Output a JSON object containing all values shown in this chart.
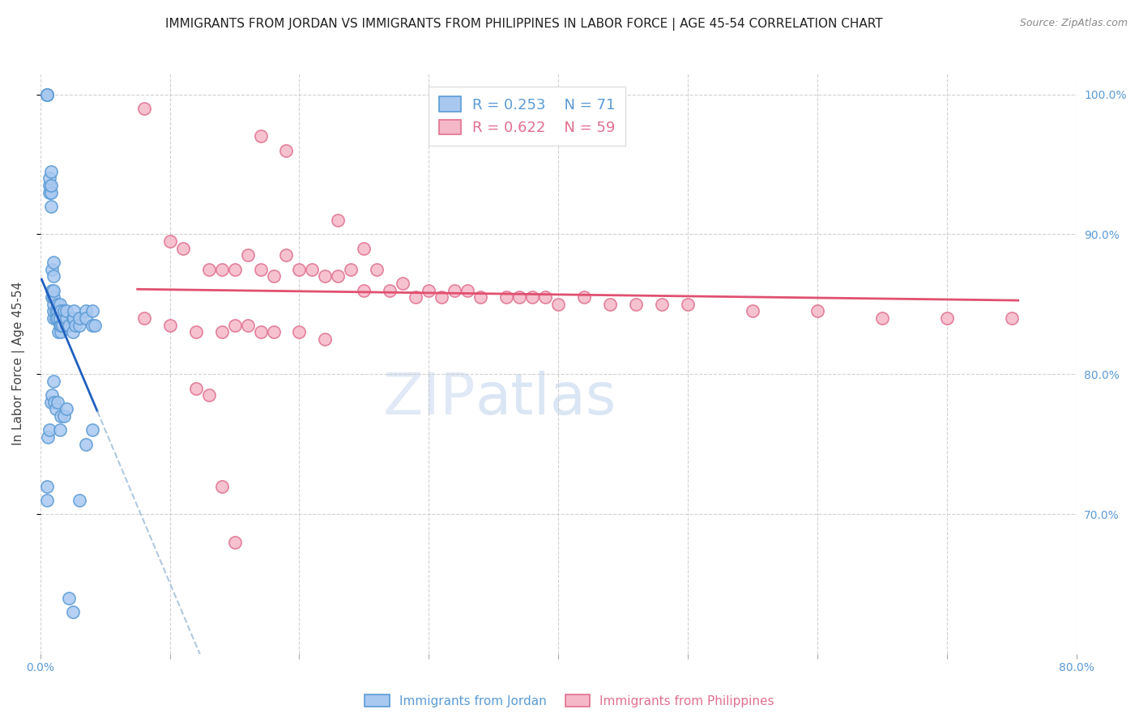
{
  "title": "IMMIGRANTS FROM JORDAN VS IMMIGRANTS FROM PHILIPPINES IN LABOR FORCE | AGE 45-54 CORRELATION CHART",
  "source": "Source: ZipAtlas.com",
  "ylabel": "In Labor Force | Age 45-54",
  "xmin": 0.0,
  "xmax": 0.8,
  "ymin": 0.6,
  "ymax": 1.015,
  "right_yticks": [
    0.7,
    0.8,
    0.9,
    1.0
  ],
  "right_ytick_labels": [
    "70.0%",
    "80.0%",
    "90.0%",
    "100.0%"
  ],
  "xticks": [
    0.0,
    0.1,
    0.2,
    0.3,
    0.4,
    0.5,
    0.6,
    0.7,
    0.8
  ],
  "xtick_labels": [
    "0.0%",
    "",
    "",
    "",
    "",
    "",
    "",
    "",
    "80.0%"
  ],
  "jordan_color": "#a8c8f0",
  "jordan_edge_color": "#5b9bd5",
  "philippines_color": "#f5b8c8",
  "philippines_edge_color": "#e07090",
  "jordan_line_color": "#2060c0",
  "philippines_line_color": "#e05070",
  "jordan_dashed_color": "#b0c8e0",
  "legend_label_jordan": "Immigrants from Jordan",
  "legend_label_philippines": "Immigrants from Philippines",
  "watermark_zip": "ZIP",
  "watermark_atlas": "atlas",
  "jordan_x": [
    0.005,
    0.005,
    0.005,
    0.007,
    0.007,
    0.007,
    0.008,
    0.008,
    0.008,
    0.008,
    0.009,
    0.009,
    0.009,
    0.01,
    0.01,
    0.01,
    0.01,
    0.01,
    0.01,
    0.01,
    0.012,
    0.012,
    0.013,
    0.013,
    0.013,
    0.014,
    0.015,
    0.015,
    0.015,
    0.015,
    0.016,
    0.016,
    0.016,
    0.017,
    0.018,
    0.018,
    0.02,
    0.02,
    0.02,
    0.022,
    0.025,
    0.025,
    0.026,
    0.026,
    0.027,
    0.03,
    0.03,
    0.035,
    0.035,
    0.04,
    0.04,
    0.042,
    0.005,
    0.005,
    0.006,
    0.007,
    0.008,
    0.009,
    0.01,
    0.011,
    0.012,
    0.013,
    0.015,
    0.016,
    0.018,
    0.02,
    0.022,
    0.025,
    0.03,
    0.035,
    0.04
  ],
  "jordan_y": [
    1.0,
    1.0,
    1.0,
    0.93,
    0.935,
    0.94,
    0.92,
    0.93,
    0.935,
    0.945,
    0.855,
    0.86,
    0.875,
    0.84,
    0.845,
    0.85,
    0.855,
    0.86,
    0.87,
    0.88,
    0.84,
    0.845,
    0.845,
    0.84,
    0.85,
    0.83,
    0.835,
    0.84,
    0.845,
    0.85,
    0.83,
    0.835,
    0.845,
    0.835,
    0.84,
    0.845,
    0.835,
    0.84,
    0.845,
    0.835,
    0.84,
    0.83,
    0.84,
    0.845,
    0.835,
    0.835,
    0.84,
    0.845,
    0.84,
    0.835,
    0.845,
    0.835,
    0.72,
    0.71,
    0.755,
    0.76,
    0.78,
    0.785,
    0.795,
    0.78,
    0.775,
    0.78,
    0.76,
    0.77,
    0.77,
    0.775,
    0.64,
    0.63,
    0.71,
    0.75,
    0.76
  ],
  "philippines_x": [
    0.08,
    0.35,
    0.17,
    0.19,
    0.23,
    0.25,
    0.1,
    0.11,
    0.13,
    0.14,
    0.15,
    0.16,
    0.17,
    0.18,
    0.19,
    0.2,
    0.21,
    0.22,
    0.23,
    0.24,
    0.25,
    0.26,
    0.27,
    0.28,
    0.29,
    0.3,
    0.31,
    0.32,
    0.33,
    0.34,
    0.36,
    0.37,
    0.38,
    0.39,
    0.4,
    0.42,
    0.44,
    0.46,
    0.48,
    0.5,
    0.55,
    0.6,
    0.65,
    0.7,
    0.75,
    0.08,
    0.1,
    0.12,
    0.14,
    0.15,
    0.16,
    0.17,
    0.18,
    0.2,
    0.22,
    0.12,
    0.13,
    0.14,
    0.15
  ],
  "philippines_y": [
    0.99,
    1.0,
    0.97,
    0.96,
    0.91,
    0.89,
    0.895,
    0.89,
    0.875,
    0.875,
    0.875,
    0.885,
    0.875,
    0.87,
    0.885,
    0.875,
    0.875,
    0.87,
    0.87,
    0.875,
    0.86,
    0.875,
    0.86,
    0.865,
    0.855,
    0.86,
    0.855,
    0.86,
    0.86,
    0.855,
    0.855,
    0.855,
    0.855,
    0.855,
    0.85,
    0.855,
    0.85,
    0.85,
    0.85,
    0.85,
    0.845,
    0.845,
    0.84,
    0.84,
    0.84,
    0.84,
    0.835,
    0.83,
    0.83,
    0.835,
    0.835,
    0.83,
    0.83,
    0.83,
    0.825,
    0.79,
    0.785,
    0.72,
    0.68
  ],
  "grid_color": "#cccccc",
  "background_color": "#ffffff",
  "title_fontsize": 11,
  "axis_label_fontsize": 11,
  "tick_fontsize": 10,
  "legend_fontsize": 13
}
